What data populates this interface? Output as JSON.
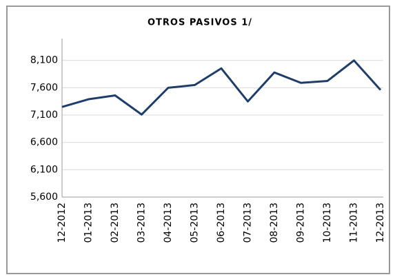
{
  "chart_data": {
    "type": "line",
    "title": "OTROS PASIVOS 1/",
    "categories": [
      "12-2012",
      "01-2013",
      "02-2013",
      "03-2013",
      "04-2013",
      "05-2013",
      "06-2013",
      "07-2013",
      "08-2013",
      "09-2013",
      "10-2013",
      "11-2013",
      "12-2013"
    ],
    "series": [
      {
        "name": "OTROS PASIVOS 1/",
        "color": "#1f3d6b",
        "values": [
          7250,
          7390,
          7460,
          7110,
          7600,
          7650,
          7955,
          7350,
          7880,
          7690,
          7725,
          8100,
          7560
        ]
      }
    ],
    "ylim": [
      5600,
      8500
    ],
    "yticks": [
      {
        "value": 5600,
        "label": "5,600"
      },
      {
        "value": 6100,
        "label": "6,100"
      },
      {
        "value": 6600,
        "label": "6,600"
      },
      {
        "value": 7100,
        "label": "7,100"
      },
      {
        "value": 7600,
        "label": "7,600"
      },
      {
        "value": 8100,
        "label": "8,100"
      }
    ],
    "grid": true
  }
}
